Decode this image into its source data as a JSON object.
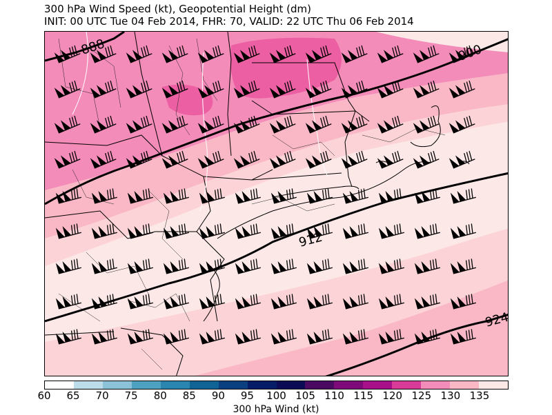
{
  "title": {
    "line1": "300 hPa Wind Speed (kt), Geopotential Height (dm)",
    "line2": "INIT: 00 UTC Tue 04 Feb 2014, FHR: 70, VALID: 22 UTC Thu 06 Feb 2014"
  },
  "contours": [
    {
      "label": "888"
    },
    {
      "label": "900"
    },
    {
      "label": "912"
    },
    {
      "label": "924"
    }
  ],
  "colorbar": {
    "label": "300 hPa Wind (kt)",
    "ticks": [
      "60",
      "65",
      "70",
      "75",
      "80",
      "85",
      "90",
      "95",
      "100",
      "105",
      "110",
      "115",
      "120",
      "125",
      "130",
      "135"
    ],
    "colors": [
      "#ffffff",
      "#bcdcea",
      "#8bc2d8",
      "#4da2c2",
      "#2a86ae",
      "#0f6495",
      "#0b4080",
      "#071c66",
      "#0b0b55",
      "#4a0a62",
      "#7d0a78",
      "#a8108a",
      "#d93b98",
      "#f48cba",
      "#fab8c6",
      "#fde8e8"
    ]
  },
  "wind_units": "kt"
}
